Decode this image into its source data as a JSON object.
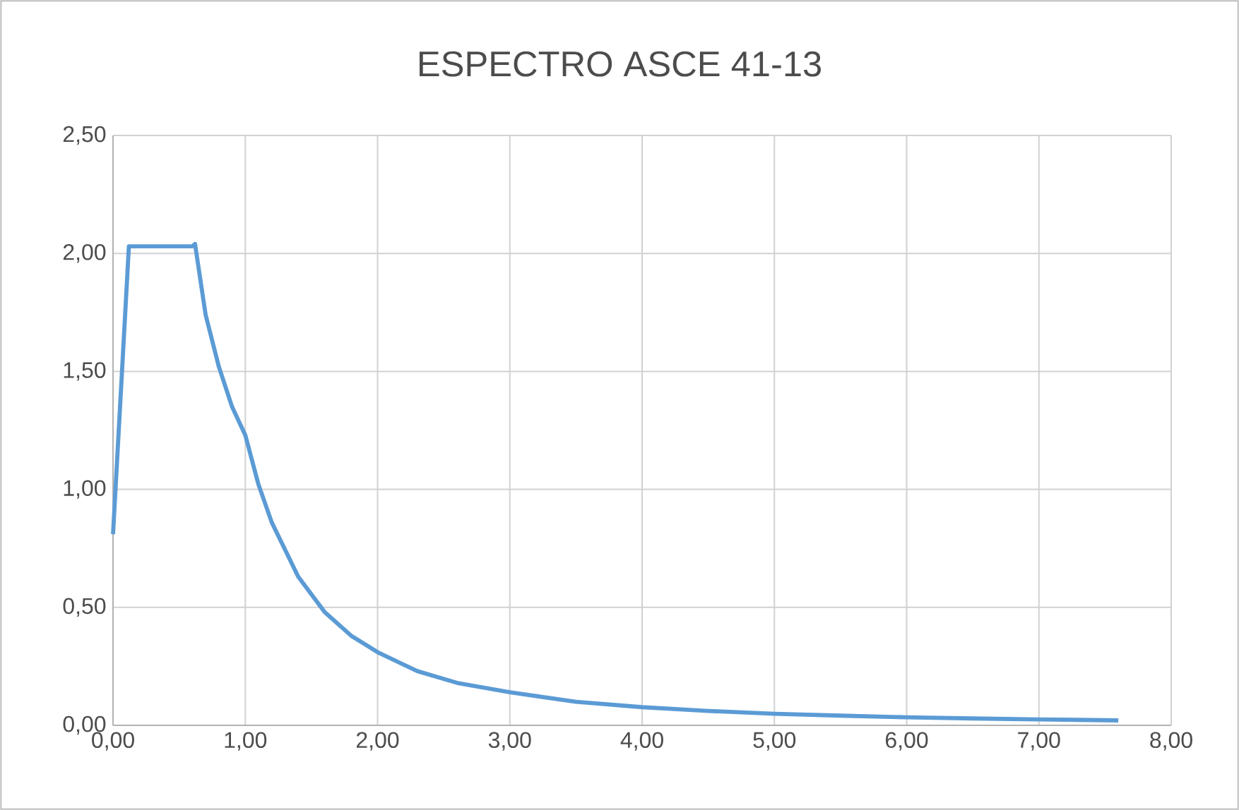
{
  "chart_data": {
    "type": "line",
    "title": "ESPECTRO ASCE 41-13",
    "series": [
      {
        "color": "#5b9bd5",
        "x": [
          0,
          0.12,
          0.3,
          0.45,
          0.6,
          0.62,
          0.7,
          0.8,
          0.9,
          1.0,
          1.1,
          1.2,
          1.4,
          1.6,
          1.8,
          2.0,
          2.3,
          2.6,
          3.0,
          3.5,
          4.0,
          4.5,
          5.0,
          5.5,
          6.0,
          6.5,
          7.0,
          7.6
        ],
        "values": [
          0.81,
          2.03,
          2.03,
          2.03,
          2.03,
          2.04,
          1.74,
          1.52,
          1.35,
          1.23,
          1.02,
          0.86,
          0.63,
          0.48,
          0.38,
          0.31,
          0.23,
          0.18,
          0.14,
          0.1,
          0.077,
          0.061,
          0.049,
          0.041,
          0.034,
          0.029,
          0.025,
          0.021
        ]
      }
    ],
    "xlim": [
      0,
      8
    ],
    "ylim": [
      0,
      2.5
    ],
    "xticks": [
      {
        "value": 0,
        "label": "0,00"
      },
      {
        "value": 1,
        "label": "1,00"
      },
      {
        "value": 2,
        "label": "2,00"
      },
      {
        "value": 3,
        "label": "3,00"
      },
      {
        "value": 4,
        "label": "4,00"
      },
      {
        "value": 5,
        "label": "5,00"
      },
      {
        "value": 6,
        "label": "6,00"
      },
      {
        "value": 7,
        "label": "7,00"
      },
      {
        "value": 8,
        "label": "8,00"
      }
    ],
    "yticks": [
      {
        "value": 0,
        "label": "0,00"
      },
      {
        "value": 0.5,
        "label": "0,50"
      },
      {
        "value": 1,
        "label": "1,00"
      },
      {
        "value": 1.5,
        "label": "1,50"
      },
      {
        "value": 2,
        "label": "2,00"
      },
      {
        "value": 2.5,
        "label": "2,50"
      }
    ],
    "grid": true,
    "marker": "none",
    "line_style": "solid"
  }
}
